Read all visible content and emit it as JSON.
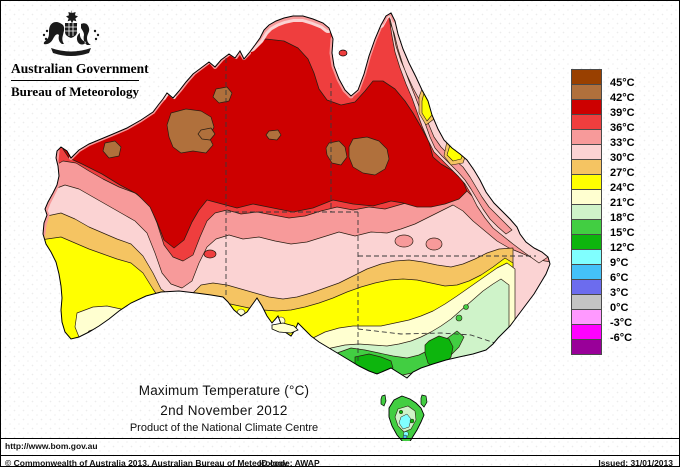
{
  "header": {
    "government": "Australian Government",
    "bureau": "Bureau of Meteorology"
  },
  "titles": {
    "main": "Maximum Temperature (°C)",
    "date": "2nd November 2012",
    "product": "Product of the National Climate Centre"
  },
  "legend": {
    "unit": "°C",
    "items": [
      {
        "color": "#994000",
        "label": "45°C"
      },
      {
        "color": "#B0703C",
        "label": "42°C"
      },
      {
        "color": "#CD0000",
        "label": "39°C"
      },
      {
        "color": "#EF3E3E",
        "label": "36°C"
      },
      {
        "color": "#F79A9A",
        "label": "33°C"
      },
      {
        "color": "#FBD3D3",
        "label": "30°C"
      },
      {
        "color": "#F5C462",
        "label": "27°C"
      },
      {
        "color": "#FFFF00",
        "label": "24°C"
      },
      {
        "color": "#FFFFD0",
        "label": "21°C"
      },
      {
        "color": "#CFF3C9",
        "label": "18°C"
      },
      {
        "color": "#42CE42",
        "label": "15°C"
      },
      {
        "color": "#0DB50D",
        "label": "12°C"
      },
      {
        "color": "#80FFFF",
        "label": "9°C"
      },
      {
        "color": "#44C1F8",
        "label": "6°C"
      },
      {
        "color": "#6C6CEE",
        "label": "3°C"
      },
      {
        "color": "#C4C4C4",
        "label": "0°C"
      },
      {
        "color": "#FF99FF",
        "label": "-3°C"
      },
      {
        "color": "#FF00FF",
        "label": "-6°C"
      },
      {
        "color": "#990099",
        "label": ""
      }
    ]
  },
  "map": {
    "palette": [
      {
        "range": "42-45",
        "color": "#B0703C"
      },
      {
        "range": "39-42",
        "color": "#CD0000"
      },
      {
        "range": "36-39",
        "color": "#EF3E3E"
      },
      {
        "range": "33-36",
        "color": "#F79A9A"
      },
      {
        "range": "30-33",
        "color": "#FBD3D3"
      },
      {
        "range": "27-30",
        "color": "#F5C462"
      },
      {
        "range": "24-27",
        "color": "#FFFF00"
      },
      {
        "range": "21-24",
        "color": "#FFFFD0"
      },
      {
        "range": "18-21",
        "color": "#CFF3C9"
      },
      {
        "range": "15-18",
        "color": "#42CE42"
      },
      {
        "range": "12-15",
        "color": "#0DB50D"
      },
      {
        "range": "9-12",
        "color": "#80FFFF"
      },
      {
        "range": "6-9",
        "color": "#44C1F8"
      }
    ]
  },
  "footer": {
    "url": "http://www.bom.gov.au",
    "copyright": "© Commonwealth of Australia 2013, Australian Bureau of Meteorology",
    "id_code": "ID code: AWAP",
    "issued": "Issued: 31/01/2013"
  }
}
